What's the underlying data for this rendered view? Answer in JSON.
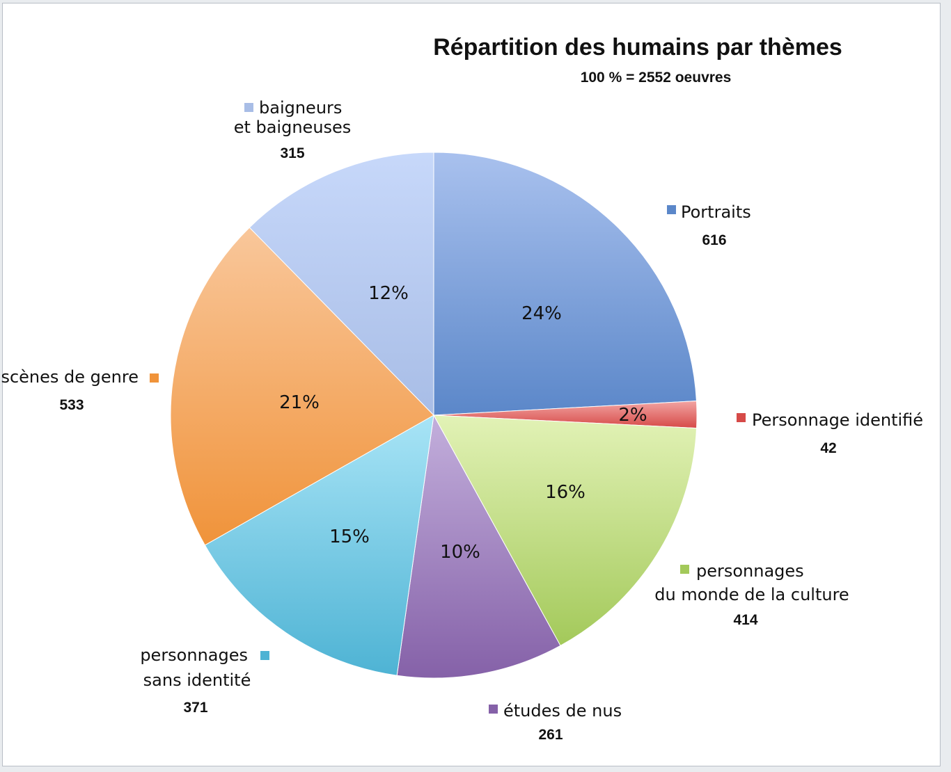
{
  "chart_data": {
    "type": "pie",
    "title": "Répartition des humains par thèmes",
    "subtitle": "100 % = 2552 oeuvres",
    "total": 2552,
    "start_angle_deg": 0,
    "direction": "clockwise",
    "slices": [
      {
        "label_lines": [
          "Portraits"
        ],
        "count_label": "616",
        "value": 616,
        "percent_label": "24%",
        "color": "#5b87c9",
        "color_light": "#a9c1ee"
      },
      {
        "label_lines": [
          "Personnage identifié"
        ],
        "count_label": "42",
        "value": 42,
        "percent_label": "2%",
        "color": "#d64a48",
        "color_light": "#f2a4a2"
      },
      {
        "label_lines": [
          "personnages",
          "du monde de la culture"
        ],
        "count_label": "414",
        "value": 414,
        "percent_label": "16%",
        "color": "#a3c95a",
        "color_light": "#e2f2b6"
      },
      {
        "label_lines": [
          "études de nus"
        ],
        "count_label": "261",
        "value": 261,
        "percent_label": "10%",
        "color": "#8561a8",
        "color_light": "#c3afdc"
      },
      {
        "label_lines": [
          "personnages",
          "sans identité"
        ],
        "count_label": "371",
        "value": 371,
        "percent_label": "15%",
        "color": "#4eb3d4",
        "color_light": "#a8e4f6"
      },
      {
        "label_lines": [
          "scènes de genre"
        ],
        "count_label": "533",
        "value": 533,
        "percent_label": "21%",
        "color": "#f0933a",
        "color_light": "#f9c79b"
      },
      {
        "label_lines": [
          "baigneurs",
          "et baigneuses"
        ],
        "count_label": "315",
        "value": 315,
        "percent_label": "12%",
        "color": "#a8bde6",
        "color_light": "#c7d8fa"
      }
    ]
  }
}
